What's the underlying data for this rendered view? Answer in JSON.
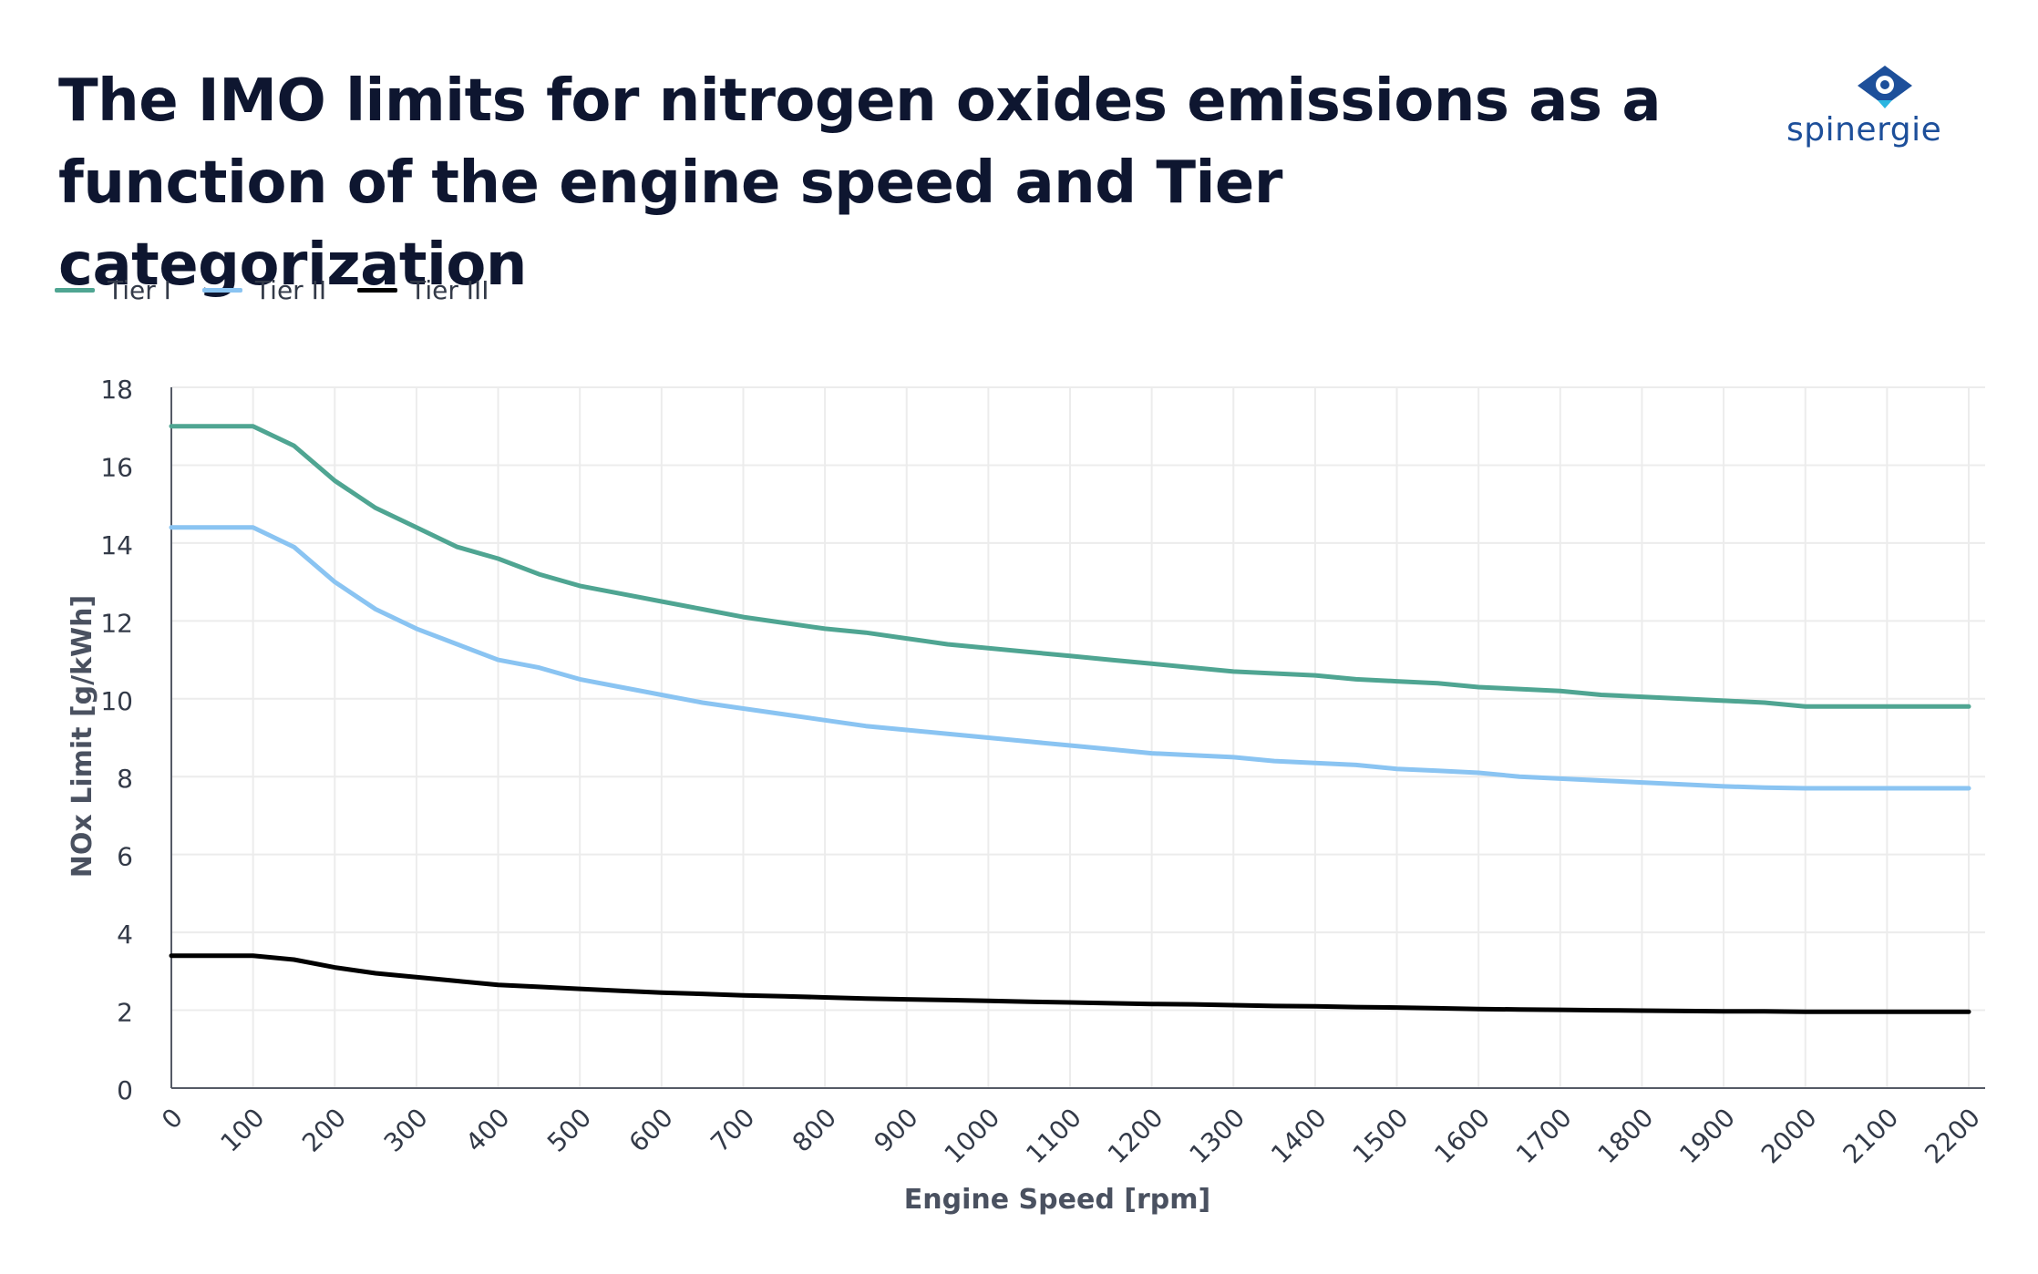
{
  "title": "The IMO limits for nitrogen oxides emissions as a function of the engine speed and Tier categorization",
  "logo": {
    "text": "spinergie",
    "icon": "eye-diamond-icon",
    "colors": {
      "primary": "#1d4f9a",
      "accent": "#2bb5e0"
    }
  },
  "chart_data": {
    "type": "line",
    "title": "The IMO limits for nitrogen oxides emissions as a function of the engine speed and Tier categorization",
    "xlabel": "Engine Speed [rpm]",
    "ylabel": "NOx Limit [g/kWh]",
    "xlim": [
      0,
      2200
    ],
    "ylim": [
      0,
      18
    ],
    "xticks": [
      0,
      100,
      200,
      300,
      400,
      500,
      600,
      700,
      800,
      900,
      1000,
      1100,
      1200,
      1300,
      1400,
      1500,
      1600,
      1700,
      1800,
      1900,
      2000,
      2100,
      2200
    ],
    "yticks": [
      0,
      2,
      4,
      6,
      8,
      10,
      12,
      14,
      16,
      18
    ],
    "grid": true,
    "legend_position": "top-left",
    "x": [
      0,
      50,
      100,
      150,
      200,
      250,
      300,
      350,
      400,
      450,
      500,
      550,
      600,
      650,
      700,
      750,
      800,
      850,
      900,
      950,
      1000,
      1050,
      1100,
      1150,
      1200,
      1250,
      1300,
      1350,
      1400,
      1450,
      1500,
      1550,
      1600,
      1650,
      1700,
      1750,
      1800,
      1850,
      1900,
      1950,
      2000,
      2050,
      2100,
      2150,
      2200
    ],
    "series": [
      {
        "name": "Tier I",
        "color": "#4fa592",
        "values": [
          17.0,
          17.0,
          17.0,
          16.5,
          15.6,
          14.9,
          14.4,
          13.9,
          13.6,
          13.2,
          12.9,
          12.7,
          12.5,
          12.3,
          12.1,
          11.95,
          11.8,
          11.7,
          11.55,
          11.4,
          11.3,
          11.2,
          11.1,
          11.0,
          10.9,
          10.8,
          10.7,
          10.65,
          10.6,
          10.5,
          10.45,
          10.4,
          10.3,
          10.25,
          10.2,
          10.1,
          10.05,
          10.0,
          9.95,
          9.9,
          9.8,
          9.8,
          9.8,
          9.8,
          9.8
        ]
      },
      {
        "name": "Tier II",
        "color": "#8ac4f2",
        "values": [
          14.4,
          14.4,
          14.4,
          13.9,
          13.0,
          12.3,
          11.8,
          11.4,
          11.0,
          10.8,
          10.5,
          10.3,
          10.1,
          9.9,
          9.75,
          9.6,
          9.45,
          9.3,
          9.2,
          9.1,
          9.0,
          8.9,
          8.8,
          8.7,
          8.6,
          8.55,
          8.5,
          8.4,
          8.35,
          8.3,
          8.2,
          8.15,
          8.1,
          8.0,
          7.95,
          7.9,
          7.85,
          7.8,
          7.75,
          7.72,
          7.7,
          7.7,
          7.7,
          7.7,
          7.7
        ]
      },
      {
        "name": "Tier III",
        "color": "#000000",
        "values": [
          3.4,
          3.4,
          3.4,
          3.3,
          3.1,
          2.95,
          2.85,
          2.75,
          2.65,
          2.6,
          2.55,
          2.5,
          2.45,
          2.42,
          2.38,
          2.36,
          2.33,
          2.3,
          2.28,
          2.26,
          2.24,
          2.22,
          2.2,
          2.18,
          2.16,
          2.15,
          2.13,
          2.11,
          2.1,
          2.08,
          2.07,
          2.05,
          2.03,
          2.02,
          2.01,
          2.0,
          1.99,
          1.98,
          1.97,
          1.97,
          1.96,
          1.96,
          1.96,
          1.96,
          1.96
        ]
      }
    ]
  }
}
